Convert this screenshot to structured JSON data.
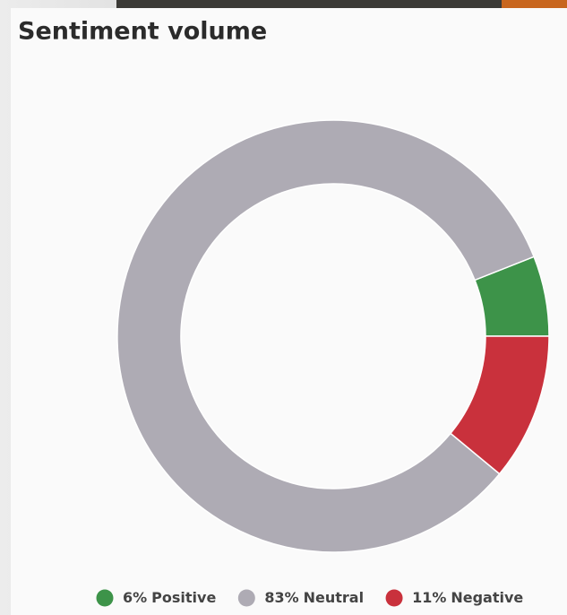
{
  "chart_data": {
    "type": "donut",
    "title": "Sentiment volume",
    "categories": [
      "Positive",
      "Neutral",
      "Negative"
    ],
    "values": [
      6,
      83,
      11
    ],
    "value_labels": [
      "6%",
      "83%",
      "11%"
    ],
    "colors": [
      "#3d9349",
      "#aeabb4",
      "#c9313c"
    ],
    "legend": "bottom"
  }
}
